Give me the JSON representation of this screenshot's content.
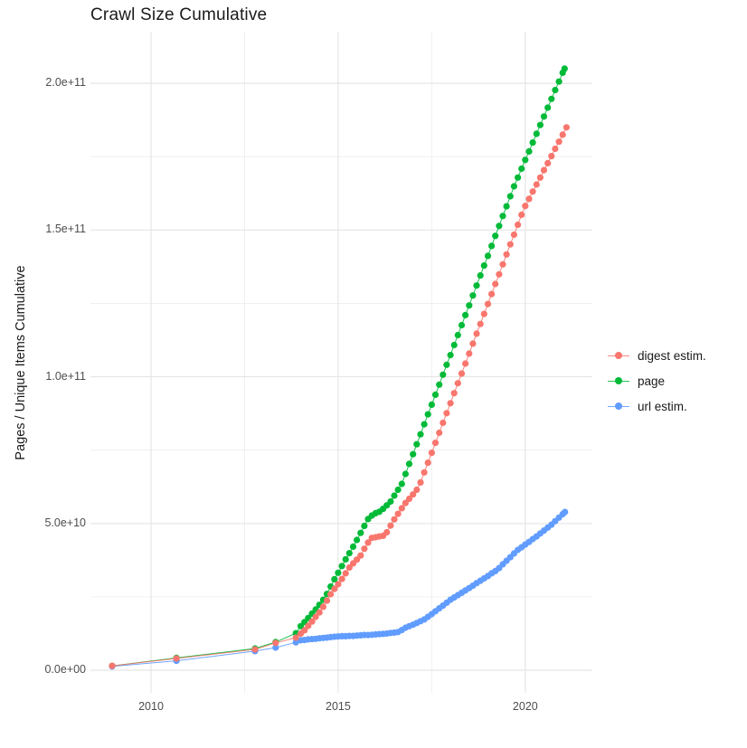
{
  "chart": {
    "title": "Crawl Size Cumulative",
    "ylabel": "Pages / Unique Items Cumulative",
    "xlabel": ""
  },
  "legend": {
    "position": "right",
    "items": [
      {
        "label": "digest estim.",
        "color": "#F8766D"
      },
      {
        "label": "page",
        "color": "#00BA38"
      },
      {
        "label": "url estim.",
        "color": "#619CFF"
      }
    ]
  },
  "chart_data": {
    "type": "scatter",
    "title": "Crawl Size Cumulative",
    "xlabel": "",
    "ylabel": "Pages / Unique Items Cumulative",
    "grid": true,
    "legend_position": "right",
    "value_unit": "1e9 (billions of pages / unique items)",
    "xlim": [
      2008.381,
      2021.792
    ],
    "ylim_e9": [
      -7.7,
      217.6
    ],
    "x_ticks": [
      {
        "value": 2010,
        "label": "2010"
      },
      {
        "value": 2015,
        "label": "2015"
      },
      {
        "value": 2020,
        "label": "2020"
      }
    ],
    "x_minor": [
      2012.5,
      2017.5
    ],
    "y_ticks": [
      {
        "value_e9": 0,
        "label": "0.0e+00"
      },
      {
        "value_e9": 50,
        "label": "5.0e+10"
      },
      {
        "value_e9": 100,
        "label": "1.0e+11"
      },
      {
        "value_e9": 150,
        "label": "1.5e+11"
      },
      {
        "value_e9": 200,
        "label": "2.0e+11"
      }
    ],
    "y_minor_e9": [
      25,
      75,
      125,
      175
    ],
    "series": [
      {
        "name": "page",
        "color": "#00BA38",
        "points_year_value_e9": [
          [
            2008.96,
            1.5
          ],
          [
            2010.68,
            4.2
          ],
          [
            2012.78,
            7.4
          ],
          [
            2013.33,
            9.6
          ],
          [
            2013.87,
            12.6
          ],
          [
            2014.0,
            15.0
          ],
          [
            2014.1,
            16.4
          ],
          [
            2014.2,
            17.8
          ],
          [
            2014.3,
            19.3
          ],
          [
            2014.4,
            20.7
          ],
          [
            2014.5,
            22.3
          ],
          [
            2014.6,
            24.0
          ],
          [
            2014.7,
            26.0
          ],
          [
            2014.8,
            28.5
          ],
          [
            2014.9,
            31.0
          ],
          [
            2015.0,
            33.2
          ],
          [
            2015.1,
            35.5
          ],
          [
            2015.2,
            37.8
          ],
          [
            2015.3,
            39.9
          ],
          [
            2015.4,
            42.1
          ],
          [
            2015.5,
            44.4
          ],
          [
            2015.6,
            46.8
          ],
          [
            2015.7,
            49.2
          ],
          [
            2015.8,
            51.5
          ],
          [
            2015.9,
            52.7
          ],
          [
            2016.0,
            53.5
          ],
          [
            2016.1,
            54.0
          ],
          [
            2016.2,
            55.0
          ],
          [
            2016.3,
            56.2
          ],
          [
            2016.4,
            57.5
          ],
          [
            2016.5,
            59.5
          ],
          [
            2016.6,
            61.5
          ],
          [
            2016.7,
            63.5
          ],
          [
            2016.8,
            66.9
          ],
          [
            2016.9,
            70.3
          ],
          [
            2017.0,
            73.6
          ],
          [
            2017.1,
            77.0
          ],
          [
            2017.2,
            80.4
          ],
          [
            2017.3,
            83.8
          ],
          [
            2017.4,
            87.2
          ],
          [
            2017.5,
            90.5
          ],
          [
            2017.6,
            93.9
          ],
          [
            2017.7,
            97.3
          ],
          [
            2017.8,
            100.7
          ],
          [
            2017.9,
            104.1
          ],
          [
            2018.0,
            107.4
          ],
          [
            2018.1,
            110.8
          ],
          [
            2018.2,
            114.2
          ],
          [
            2018.3,
            117.6
          ],
          [
            2018.4,
            121.0
          ],
          [
            2018.5,
            124.3
          ],
          [
            2018.6,
            127.7
          ],
          [
            2018.7,
            131.1
          ],
          [
            2018.8,
            134.5
          ],
          [
            2018.9,
            137.9
          ],
          [
            2019.0,
            141.2
          ],
          [
            2019.1,
            144.6
          ],
          [
            2019.2,
            148.0
          ],
          [
            2019.3,
            151.4
          ],
          [
            2019.4,
            154.8
          ],
          [
            2019.5,
            158.1
          ],
          [
            2019.6,
            161.5
          ],
          [
            2019.7,
            164.9
          ],
          [
            2019.8,
            167.9
          ],
          [
            2019.9,
            170.9
          ],
          [
            2020.0,
            173.9
          ],
          [
            2020.1,
            176.8
          ],
          [
            2020.2,
            179.8
          ],
          [
            2020.3,
            182.8
          ],
          [
            2020.4,
            185.8
          ],
          [
            2020.5,
            188.7
          ],
          [
            2020.6,
            191.7
          ],
          [
            2020.7,
            194.7
          ],
          [
            2020.8,
            197.7
          ],
          [
            2020.9,
            200.6
          ],
          [
            2021.0,
            203.6
          ],
          [
            2021.05,
            205.0
          ]
        ]
      },
      {
        "name": "url estim.",
        "color": "#619CFF",
        "points_year_value_e9": [
          [
            2008.96,
            1.3
          ],
          [
            2010.68,
            3.2
          ],
          [
            2012.78,
            6.5
          ],
          [
            2013.33,
            7.7
          ],
          [
            2013.87,
            9.5
          ],
          [
            2014.0,
            10.2
          ],
          [
            2014.1,
            10.3
          ],
          [
            2014.2,
            10.5
          ],
          [
            2014.3,
            10.6
          ],
          [
            2014.4,
            10.7
          ],
          [
            2014.5,
            10.9
          ],
          [
            2014.6,
            11.0
          ],
          [
            2014.7,
            11.1
          ],
          [
            2014.8,
            11.3
          ],
          [
            2014.9,
            11.4
          ],
          [
            2015.0,
            11.5
          ],
          [
            2015.1,
            11.6
          ],
          [
            2015.2,
            11.6
          ],
          [
            2015.3,
            11.7
          ],
          [
            2015.4,
            11.7
          ],
          [
            2015.5,
            11.8
          ],
          [
            2015.6,
            11.9
          ],
          [
            2015.7,
            12.0
          ],
          [
            2015.8,
            12.0
          ],
          [
            2015.9,
            12.1
          ],
          [
            2016.0,
            12.2
          ],
          [
            2016.1,
            12.3
          ],
          [
            2016.2,
            12.4
          ],
          [
            2016.3,
            12.5
          ],
          [
            2016.4,
            12.7
          ],
          [
            2016.5,
            12.8
          ],
          [
            2016.6,
            13.0
          ],
          [
            2016.7,
            13.7
          ],
          [
            2016.8,
            14.5
          ],
          [
            2016.9,
            15.0
          ],
          [
            2017.0,
            15.5
          ],
          [
            2017.1,
            16.1
          ],
          [
            2017.2,
            16.7
          ],
          [
            2017.3,
            17.3
          ],
          [
            2017.4,
            18.2
          ],
          [
            2017.5,
            19.1
          ],
          [
            2017.6,
            20.1
          ],
          [
            2017.7,
            21.1
          ],
          [
            2017.8,
            22.0
          ],
          [
            2017.9,
            23.0
          ],
          [
            2018.0,
            24.0
          ],
          [
            2018.1,
            24.8
          ],
          [
            2018.2,
            25.6
          ],
          [
            2018.3,
            26.4
          ],
          [
            2018.4,
            27.2
          ],
          [
            2018.5,
            28.0
          ],
          [
            2018.6,
            28.8
          ],
          [
            2018.7,
            29.7
          ],
          [
            2018.8,
            30.5
          ],
          [
            2018.9,
            31.3
          ],
          [
            2019.0,
            32.1
          ],
          [
            2019.1,
            33.0
          ],
          [
            2019.2,
            33.8
          ],
          [
            2019.3,
            34.8
          ],
          [
            2019.4,
            36.1
          ],
          [
            2019.5,
            37.3
          ],
          [
            2019.6,
            38.5
          ],
          [
            2019.7,
            39.8
          ],
          [
            2019.8,
            41.0
          ],
          [
            2019.9,
            41.9
          ],
          [
            2020.0,
            42.8
          ],
          [
            2020.1,
            43.7
          ],
          [
            2020.2,
            44.7
          ],
          [
            2020.3,
            45.6
          ],
          [
            2020.4,
            46.6
          ],
          [
            2020.5,
            47.6
          ],
          [
            2020.6,
            48.6
          ],
          [
            2020.7,
            49.6
          ],
          [
            2020.8,
            50.8
          ],
          [
            2020.9,
            52.0
          ],
          [
            2021.0,
            53.2
          ],
          [
            2021.06,
            53.9
          ]
        ]
      },
      {
        "name": "digest estim.",
        "color": "#F8766D",
        "points_year_value_e9": [
          [
            2008.96,
            1.5
          ],
          [
            2010.68,
            4.0
          ],
          [
            2012.78,
            7.1
          ],
          [
            2013.33,
            9.3
          ],
          [
            2013.87,
            11.1
          ],
          [
            2014.0,
            12.5
          ],
          [
            2014.1,
            13.6
          ],
          [
            2014.2,
            15.1
          ],
          [
            2014.3,
            16.6
          ],
          [
            2014.4,
            18.2
          ],
          [
            2014.5,
            19.7
          ],
          [
            2014.6,
            21.6
          ],
          [
            2014.7,
            23.7
          ],
          [
            2014.8,
            25.9
          ],
          [
            2014.9,
            27.7
          ],
          [
            2015.0,
            29.3
          ],
          [
            2015.1,
            31.1
          ],
          [
            2015.2,
            33.0
          ],
          [
            2015.3,
            35.0
          ],
          [
            2015.4,
            36.4
          ],
          [
            2015.5,
            37.7
          ],
          [
            2015.6,
            39.1
          ],
          [
            2015.7,
            41.4
          ],
          [
            2015.8,
            43.5
          ],
          [
            2015.9,
            45.1
          ],
          [
            2016.0,
            45.3
          ],
          [
            2016.1,
            45.6
          ],
          [
            2016.2,
            45.8
          ],
          [
            2016.3,
            47.0
          ],
          [
            2016.4,
            49.3
          ],
          [
            2016.5,
            51.4
          ],
          [
            2016.6,
            53.3
          ],
          [
            2016.7,
            55.2
          ],
          [
            2016.8,
            57.0
          ],
          [
            2016.9,
            58.4
          ],
          [
            2017.0,
            59.9
          ],
          [
            2017.1,
            61.5
          ],
          [
            2017.2,
            64.0
          ],
          [
            2017.3,
            67.4
          ],
          [
            2017.4,
            70.7
          ],
          [
            2017.5,
            74.1
          ],
          [
            2017.6,
            77.5
          ],
          [
            2017.7,
            80.9
          ],
          [
            2017.8,
            84.3
          ],
          [
            2017.9,
            87.6
          ],
          [
            2018.0,
            91.0
          ],
          [
            2018.1,
            94.4
          ],
          [
            2018.2,
            97.8
          ],
          [
            2018.3,
            101.1
          ],
          [
            2018.4,
            104.5
          ],
          [
            2018.5,
            107.9
          ],
          [
            2018.6,
            111.3
          ],
          [
            2018.7,
            114.7
          ],
          [
            2018.8,
            118.0
          ],
          [
            2018.9,
            121.4
          ],
          [
            2019.0,
            124.8
          ],
          [
            2019.1,
            128.2
          ],
          [
            2019.2,
            131.6
          ],
          [
            2019.3,
            134.9
          ],
          [
            2019.4,
            138.3
          ],
          [
            2019.5,
            141.7
          ],
          [
            2019.6,
            145.1
          ],
          [
            2019.7,
            148.4
          ],
          [
            2019.8,
            151.8
          ],
          [
            2019.9,
            155.2
          ],
          [
            2020.0,
            158.2
          ],
          [
            2020.1,
            160.6
          ],
          [
            2020.2,
            163.1
          ],
          [
            2020.3,
            165.5
          ],
          [
            2020.4,
            167.9
          ],
          [
            2020.5,
            170.4
          ],
          [
            2020.6,
            172.8
          ],
          [
            2020.7,
            175.2
          ],
          [
            2020.8,
            177.7
          ],
          [
            2020.9,
            180.1
          ],
          [
            2021.0,
            182.5
          ],
          [
            2021.1,
            185.0
          ]
        ]
      }
    ]
  },
  "style": {
    "grid_major_color": "#e5e5e5",
    "grid_minor_color": "#f0f0f0",
    "background": "#ffffff"
  }
}
